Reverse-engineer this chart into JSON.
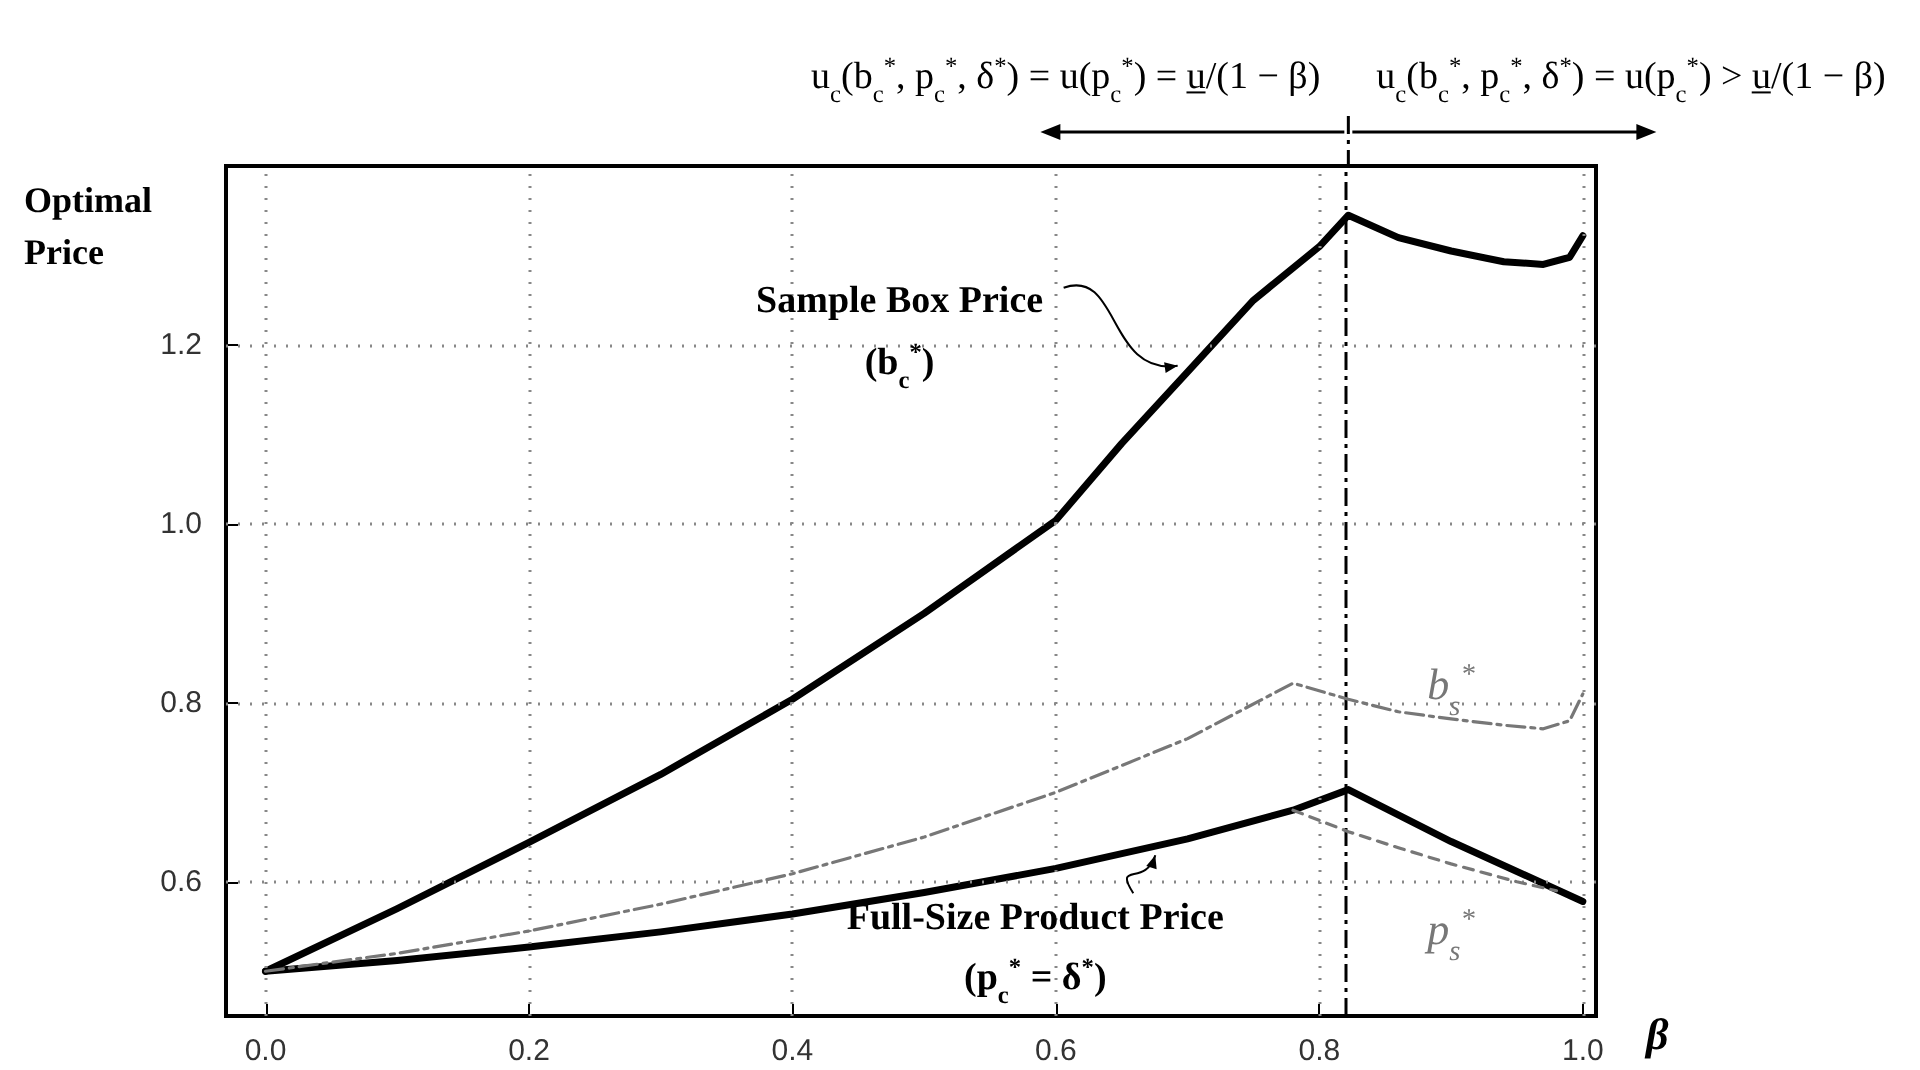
{
  "chart_data": {
    "type": "line",
    "xlabel": "β",
    "ylabel": "Optimal Price",
    "xlim": [
      -0.03,
      1.01
    ],
    "xticks": [
      {
        "value": 0,
        "label": "0.0"
      },
      {
        "value": 0.2,
        "label": "0.2"
      },
      {
        "value": 0.4,
        "label": "0.4"
      },
      {
        "value": 0.6,
        "label": "0.6"
      },
      {
        "value": 0.8,
        "label": "0.8"
      },
      {
        "value": 1,
        "label": "1.0"
      }
    ],
    "ylim": [
      0.45,
      1.4
    ],
    "yticks": [
      0.6,
      0.8,
      {
        "value": 1,
        "label": "1.0"
      },
      1.2
    ],
    "grid": true,
    "marker": "none",
    "series": [
      {
        "color": "#000000",
        "line_style": "solid",
        "x": [
          0,
          0.1,
          0.2,
          0.3,
          0.4,
          0.5,
          0.6,
          0.65,
          0.7,
          0.75,
          0.8,
          0.822,
          0.86,
          0.9,
          0.94,
          0.97,
          0.99,
          1.0
        ],
        "values": [
          0.5,
          0.57,
          0.644,
          0.72,
          0.804,
          0.9,
          1.004,
          1.09,
          1.17,
          1.25,
          1.31,
          1.345,
          1.32,
          1.305,
          1.293,
          1.29,
          1.298,
          1.322
        ]
      },
      {
        "color": "#000000",
        "line_style": "solid",
        "x": [
          0,
          0.1,
          0.2,
          0.3,
          0.4,
          0.5,
          0.6,
          0.7,
          0.78,
          0.822,
          0.9,
          1.0
        ],
        "values": [
          0.5,
          0.512,
          0.527,
          0.544,
          0.564,
          0.588,
          0.615,
          0.648,
          0.68,
          0.703,
          0.645,
          0.578
        ]
      },
      {
        "color": "#777777",
        "line_style": "dashdot",
        "x": [
          0,
          0.1,
          0.2,
          0.3,
          0.4,
          0.5,
          0.6,
          0.7,
          0.78,
          0.822,
          0.86,
          0.9,
          0.94,
          0.97,
          0.99,
          1.0
        ],
        "values": [
          0.5,
          0.52,
          0.545,
          0.575,
          0.609,
          0.65,
          0.7,
          0.76,
          0.822,
          0.804,
          0.79,
          0.782,
          0.775,
          0.771,
          0.78,
          0.81
        ]
      },
      {
        "color": "#777777",
        "line_style": "dashed",
        "x": [
          0.78,
          0.822,
          0.86,
          0.9,
          0.95,
          0.98
        ],
        "values": [
          0.68,
          0.656,
          0.638,
          0.62,
          0.6,
          0.59
        ]
      }
    ],
    "ref_lines": [
      {
        "axis": "x",
        "value": 0.822,
        "color": "#000000",
        "line_style": "dashdot"
      }
    ],
    "annotations": [
      "u$_{c}$(b$_{c}$$^{*}$, p$_{c}$$^{*}$, δ$^{*}$) = u(p$_{c}$$^{*}$) = u̲/(1 − β)",
      "u$_{c}$(b$_{c}$$^{*}$, p$_{c}$$^{*}$, δ$^{*}$) = u(p$_{c}$$^{*}$) > u̲/(1 − β)",
      {
        "text": "Sample Box Price (b$_{c}$$^{*}$)",
        "x": 0.7,
        "y": 1.17
      },
      {
        "text": "Full-Size Product Price (p$_{c}$$^{*}$ = δ$^{*}$)",
        "x": 0.68,
        "y": 0.643
      },
      {
        "text": "b$_{s}$$^{*}$",
        "x": 0.9,
        "y": 0.782
      },
      {
        "text": "p$_{s}$$^{*}$",
        "x": 0.9,
        "y": 0.62
      }
    ]
  }
}
